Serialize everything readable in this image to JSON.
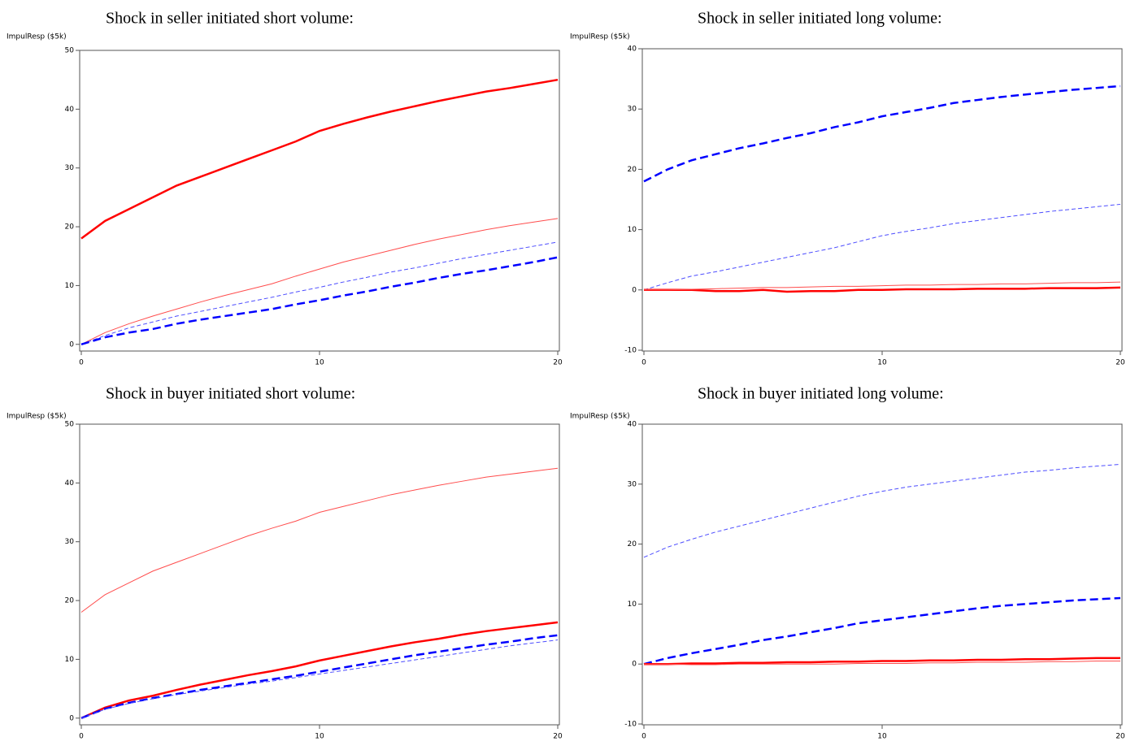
{
  "chart_data": [
    {
      "type": "line",
      "title": "Shock in seller initiated short volume:",
      "ylabel": "ImpulResp ($5k)",
      "x": [
        0,
        1,
        2,
        3,
        4,
        5,
        6,
        7,
        8,
        9,
        10,
        11,
        12,
        13,
        14,
        15,
        16,
        17,
        18,
        19,
        20
      ],
      "xlim": [
        0,
        20
      ],
      "xticks": [
        0,
        10,
        20
      ],
      "ylim": [
        -1,
        50
      ],
      "yticks": [
        0,
        10,
        20,
        30,
        40,
        50
      ],
      "series": [
        {
          "color": "#ff0000",
          "width": 2.5,
          "dash": "solid",
          "values": [
            18,
            21,
            23,
            25,
            27,
            28.5,
            30,
            31.5,
            33,
            34.5,
            36.3,
            37.5,
            38.6,
            39.6,
            40.5,
            41.4,
            42.2,
            43,
            43.6,
            44.3,
            45
          ]
        },
        {
          "color": "#ff4d4d",
          "width": 1,
          "dash": "solid",
          "values": [
            0,
            2,
            3.5,
            4.8,
            6,
            7.2,
            8.3,
            9.3,
            10.3,
            11.6,
            12.8,
            14,
            15,
            16,
            17,
            17.9,
            18.7,
            19.5,
            20.2,
            20.8,
            21.4
          ]
        },
        {
          "color": "#4d4dff",
          "width": 1,
          "dash": "dashed",
          "values": [
            0,
            1.5,
            2.8,
            3.8,
            4.8,
            5.6,
            6.4,
            7.2,
            8,
            8.9,
            9.7,
            10.6,
            11.4,
            12.3,
            13,
            13.8,
            14.6,
            15.3,
            16,
            16.7,
            17.4
          ]
        },
        {
          "color": "#0000ff",
          "width": 2.5,
          "dash": "dashed",
          "values": [
            0,
            1.2,
            2,
            2.6,
            3.5,
            4.2,
            4.8,
            5.4,
            6,
            6.8,
            7.5,
            8.3,
            9,
            9.8,
            10.5,
            11.3,
            12,
            12.6,
            13.3,
            14,
            14.8
          ]
        }
      ]
    },
    {
      "type": "line",
      "title": "Shock in seller initiated long volume:",
      "ylabel": "ImpulResp ($5k)",
      "x": [
        0,
        1,
        2,
        3,
        4,
        5,
        6,
        7,
        8,
        9,
        10,
        11,
        12,
        13,
        14,
        15,
        16,
        17,
        18,
        19,
        20
      ],
      "xlim": [
        0,
        20
      ],
      "xticks": [
        0,
        10,
        20
      ],
      "ylim": [
        -10,
        40
      ],
      "yticks": [
        -10,
        0,
        10,
        20,
        30,
        40
      ],
      "series": [
        {
          "color": "#0000ff",
          "width": 2.5,
          "dash": "dashed",
          "values": [
            18,
            20,
            21.5,
            22.5,
            23.5,
            24.3,
            25.2,
            26,
            27,
            27.8,
            28.8,
            29.5,
            30.2,
            31,
            31.5,
            32,
            32.4,
            32.8,
            33.2,
            33.5,
            33.8
          ]
        },
        {
          "color": "#4d4dff",
          "width": 1,
          "dash": "dashed",
          "values": [
            0,
            1.2,
            2.3,
            3,
            3.8,
            4.6,
            5.4,
            6.2,
            7,
            8,
            9,
            9.7,
            10.3,
            11,
            11.5,
            12,
            12.5,
            13,
            13.4,
            13.8,
            14.2
          ]
        },
        {
          "color": "#ff0000",
          "width": 2.5,
          "dash": "solid",
          "values": [
            0,
            0,
            0,
            -0.2,
            -0.2,
            0,
            -0.3,
            -0.2,
            -0.2,
            0,
            0,
            0.1,
            0.1,
            0.1,
            0.2,
            0.2,
            0.2,
            0.3,
            0.3,
            0.3,
            0.4
          ]
        },
        {
          "color": "#ff4d4d",
          "width": 1,
          "dash": "solid",
          "values": [
            0,
            0,
            0.1,
            0.2,
            0.3,
            0.4,
            0.4,
            0.5,
            0.6,
            0.6,
            0.7,
            0.8,
            0.8,
            0.9,
            0.9,
            1,
            1,
            1.1,
            1.2,
            1.2,
            1.3
          ]
        }
      ]
    },
    {
      "type": "line",
      "title": "Shock in buyer initiated short volume:",
      "ylabel": "ImpulResp ($5k)",
      "x": [
        0,
        1,
        2,
        3,
        4,
        5,
        6,
        7,
        8,
        9,
        10,
        11,
        12,
        13,
        14,
        15,
        16,
        17,
        18,
        19,
        20
      ],
      "xlim": [
        0,
        20
      ],
      "xticks": [
        0,
        10,
        20
      ],
      "ylim": [
        -1,
        50
      ],
      "yticks": [
        0,
        10,
        20,
        30,
        40,
        50
      ],
      "series": [
        {
          "color": "#ff4d4d",
          "width": 1,
          "dash": "solid",
          "values": [
            18,
            21,
            23,
            25,
            26.5,
            28,
            29.5,
            31,
            32.3,
            33.5,
            35,
            36,
            37,
            38,
            38.8,
            39.6,
            40.3,
            41,
            41.5,
            42,
            42.5
          ]
        },
        {
          "color": "#ff0000",
          "width": 2.5,
          "dash": "solid",
          "values": [
            0,
            1.8,
            3,
            3.8,
            4.8,
            5.7,
            6.5,
            7.3,
            8,
            8.8,
            9.8,
            10.6,
            11.4,
            12.2,
            12.9,
            13.5,
            14.2,
            14.8,
            15.3,
            15.8,
            16.3
          ]
        },
        {
          "color": "#0000ff",
          "width": 2.5,
          "dash": "dashed",
          "values": [
            0,
            1.6,
            2.6,
            3.4,
            4.1,
            4.8,
            5.4,
            6,
            6.6,
            7.2,
            7.9,
            8.6,
            9.3,
            10,
            10.7,
            11.3,
            11.9,
            12.5,
            13,
            13.6,
            14.1
          ]
        },
        {
          "color": "#4d4dff",
          "width": 1,
          "dash": "dashed",
          "values": [
            0,
            1.5,
            2.5,
            3.3,
            4,
            4.6,
            5.2,
            5.8,
            6.3,
            6.9,
            7.5,
            8.1,
            8.7,
            9.3,
            9.9,
            10.5,
            11.1,
            11.7,
            12.3,
            12.8,
            13.3
          ]
        }
      ]
    },
    {
      "type": "line",
      "title": "Shock in buyer initiated long volume:",
      "ylabel": "ImpulResp ($5k)",
      "x": [
        0,
        1,
        2,
        3,
        4,
        5,
        6,
        7,
        8,
        9,
        10,
        11,
        12,
        13,
        14,
        15,
        16,
        17,
        18,
        19,
        20
      ],
      "xlim": [
        0,
        20
      ],
      "xticks": [
        0,
        10,
        20
      ],
      "ylim": [
        -10,
        40
      ],
      "yticks": [
        -10,
        0,
        10,
        20,
        30,
        40
      ],
      "series": [
        {
          "color": "#4d4dff",
          "width": 1,
          "dash": "dashed",
          "values": [
            17.8,
            19.5,
            20.8,
            22,
            23,
            24,
            25,
            26,
            27,
            28,
            28.8,
            29.5,
            30,
            30.5,
            31,
            31.5,
            32,
            32.3,
            32.7,
            33,
            33.3
          ]
        },
        {
          "color": "#0000ff",
          "width": 2.5,
          "dash": "dashed",
          "values": [
            0,
            1,
            1.8,
            2.5,
            3.2,
            4,
            4.6,
            5.3,
            6,
            6.8,
            7.3,
            7.8,
            8.3,
            8.8,
            9.3,
            9.7,
            10,
            10.3,
            10.6,
            10.8,
            11
          ]
        },
        {
          "color": "#ff0000",
          "width": 2.5,
          "dash": "solid",
          "values": [
            0,
            0,
            0.1,
            0.1,
            0.2,
            0.2,
            0.3,
            0.3,
            0.4,
            0.4,
            0.5,
            0.5,
            0.6,
            0.6,
            0.7,
            0.7,
            0.8,
            0.8,
            0.9,
            1,
            1
          ]
        },
        {
          "color": "#ff4d4d",
          "width": 1,
          "dash": "solid",
          "values": [
            0,
            0,
            -0.1,
            -0.1,
            0,
            0,
            0,
            0,
            0,
            0.1,
            0.1,
            0.1,
            0.2,
            0.2,
            0.3,
            0.3,
            0.3,
            0.4,
            0.4,
            0.5,
            0.5
          ]
        }
      ]
    }
  ]
}
